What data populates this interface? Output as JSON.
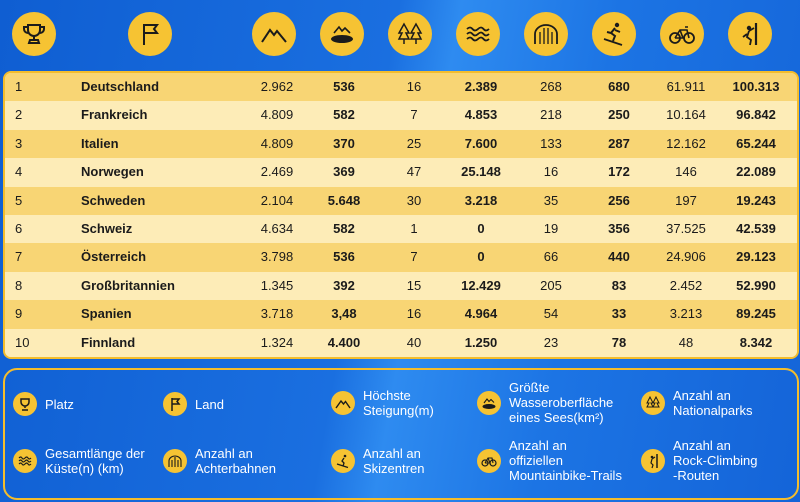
{
  "header_icons": [
    "trophy-icon",
    "flag-icon",
    "mountain-icon",
    "lake-icon",
    "forest-icon",
    "waves-icon",
    "rollercoaster-icon",
    "skier-icon",
    "bicycle-icon",
    "climber-icon"
  ],
  "colors": {
    "accent": "#f6c333",
    "row_dark": "#f8d574",
    "row_light": "#fdecb7",
    "background": "#1a6fe0"
  },
  "rows": [
    {
      "rank": "1",
      "country": "Deutschland",
      "steigung": "2.962",
      "see": "536",
      "nationalparks": "16",
      "kueste": "2.389",
      "achterbahnen": "268",
      "skizentren": "680",
      "mtb": "61.911",
      "climbing": "100.313"
    },
    {
      "rank": "2",
      "country": "Frankreich",
      "steigung": "4.809",
      "see": "582",
      "nationalparks": "7",
      "kueste": "4.853",
      "achterbahnen": "218",
      "skizentren": "250",
      "mtb": "10.164",
      "climbing": "96.842"
    },
    {
      "rank": "3",
      "country": "Italien",
      "steigung": "4.809",
      "see": "370",
      "nationalparks": "25",
      "kueste": "7.600",
      "achterbahnen": "133",
      "skizentren": "287",
      "mtb": "12.162",
      "climbing": "65.244"
    },
    {
      "rank": "4",
      "country": "Norwegen",
      "steigung": "2.469",
      "see": "369",
      "nationalparks": "47",
      "kueste": "25.148",
      "achterbahnen": "16",
      "skizentren": "172",
      "mtb": "146",
      "climbing": "22.089"
    },
    {
      "rank": "5",
      "country": "Schweden",
      "steigung": "2.104",
      "see": "5.648",
      "nationalparks": "30",
      "kueste": "3.218",
      "achterbahnen": "35",
      "skizentren": "256",
      "mtb": "197",
      "climbing": "19.243"
    },
    {
      "rank": "6",
      "country": "Schweiz",
      "steigung": "4.634",
      "see": "582",
      "nationalparks": "1",
      "kueste": "0",
      "achterbahnen": "19",
      "skizentren": "356",
      "mtb": "37.525",
      "climbing": "42.539"
    },
    {
      "rank": "7",
      "country": "Österreich",
      "steigung": "3.798",
      "see": "536",
      "nationalparks": "7",
      "kueste": "0",
      "achterbahnen": "66",
      "skizentren": "440",
      "mtb": "24.906",
      "climbing": "29.123"
    },
    {
      "rank": "8",
      "country": "Großbritannien",
      "steigung": "1.345",
      "see": "392",
      "nationalparks": "15",
      "kueste": "12.429",
      "achterbahnen": "205",
      "skizentren": "83",
      "mtb": "2.452",
      "climbing": "52.990"
    },
    {
      "rank": "9",
      "country": "Spanien",
      "steigung": "3.718",
      "see": "3,48",
      "nationalparks": "16",
      "kueste": "4.964",
      "achterbahnen": "54",
      "skizentren": "33",
      "mtb": "3.213",
      "climbing": "89.245"
    },
    {
      "rank": "10",
      "country": "Finnland",
      "steigung": "1.324",
      "see": "4.400",
      "nationalparks": "40",
      "kueste": "1.250",
      "achterbahnen": "23",
      "skizentren": "78",
      "mtb": "48",
      "climbing": "8.342"
    }
  ],
  "legend": [
    {
      "icon": "trophy-icon",
      "label": "Platz"
    },
    {
      "icon": "flag-icon",
      "label": "Land"
    },
    {
      "icon": "mountain-icon",
      "label": "Höchste\nSteigung(m)"
    },
    {
      "icon": "lake-icon",
      "label": "Größte\nWasseroberfläche\neines Sees(km²)"
    },
    {
      "icon": "forest-icon",
      "label": "Anzahl an\nNationalparks"
    },
    {
      "icon": "waves-icon",
      "label": "Gesamtlänge der\nKüste(n) (km)"
    },
    {
      "icon": "rollercoaster-icon",
      "label": "Anzahl an\nAchterbahnen"
    },
    {
      "icon": "skier-icon",
      "label": "Anzahl an\nSkizentren"
    },
    {
      "icon": "bicycle-icon",
      "label": "Anzahl an\noffiziellen\nMountainbike-Trails"
    },
    {
      "icon": "climber-icon",
      "label": "Anzahl an\nRock-Climbing\n-Routen"
    }
  ]
}
